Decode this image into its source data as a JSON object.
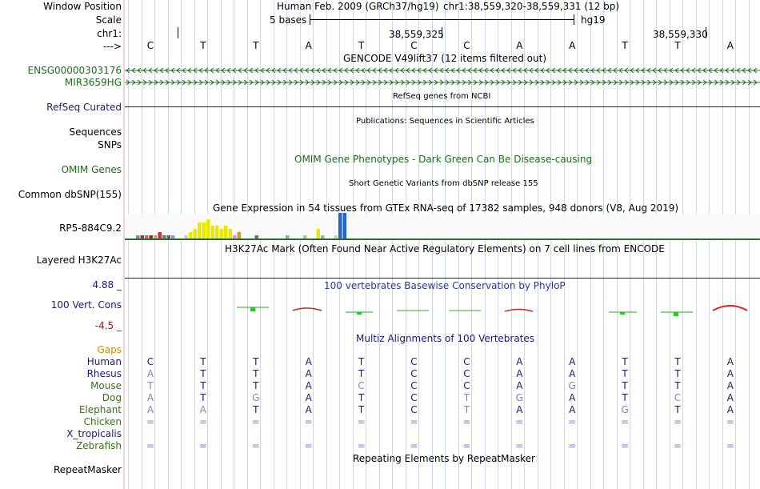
{
  "header": {
    "window_position_label": "Window Position",
    "scale_label": "Scale",
    "chr_label": "chr1:",
    "strand_label": "--->",
    "assembly": "Human Feb. 2009 (GRCh37/hg19)",
    "coords": "chr1:38,559,320-38,559,331 (12 bp)",
    "scale_text": "5 bases",
    "scale_db": "hg19",
    "pos1": "38,559,325",
    "pos2": "38,559,330"
  },
  "bases": [
    "C",
    "T",
    "T",
    "A",
    "T",
    "C",
    "C",
    "A",
    "A",
    "T",
    "T",
    "A"
  ],
  "tracks": {
    "gencode_title": "GENCODE V49lift37 (12 items filtered out)",
    "gene1": "ENSG00000303176",
    "gene2": "MIR3659HG",
    "refseq_title": "RefSeq genes from NCBI",
    "refseq_label": "RefSeq Curated",
    "pubs_title": "Publications: Sequences in Scientific Articles",
    "sequences_label": "Sequences",
    "snps_label": "SNPs",
    "omim_title": "OMIM Gene Phenotypes - Dark Green Can Be Disease-causing",
    "omim_label": "OMIM Genes",
    "dbsnp_title": "Short Genetic Variants from dbSNP release 155",
    "dbsnp_label": "Common dbSNP(155)",
    "gtex_title": "Gene Expression in 54 tissues from GTEx RNA-seq of 17382 samples, 948 donors (V8, Aug 2019)",
    "gtex_label": "RP5-884C9.2",
    "h3k27_title": "H3K27Ac Mark (Often Found Near Active Regulatory Elements) on 7 cell lines from ENCODE",
    "h3k27_label": "Layered H3K27Ac",
    "cons_title": "100 vertebrates Basewise Conservation by PhyloP",
    "cons_max": "4.88 _",
    "cons_label": "100 Vert. Cons",
    "cons_min": "-4.5 _",
    "multiz_title": "Multiz Alignments of 100 Vertebrates",
    "gaps_label": "Gaps",
    "repeat_title": "Repeating Elements by RepeatMasker",
    "repeat_label": "RepeatMasker"
  },
  "alignment": [
    {
      "species": "Human",
      "bases": [
        "C",
        "T",
        "T",
        "A",
        "T",
        "C",
        "C",
        "A",
        "A",
        "T",
        "T",
        "A"
      ],
      "muted": [
        false,
        false,
        false,
        false,
        false,
        false,
        false,
        false,
        false,
        false,
        false,
        false
      ]
    },
    {
      "species": "Rhesus",
      "bases": [
        "A",
        "T",
        "T",
        "A",
        "T",
        "C",
        "C",
        "A",
        "A",
        "T",
        "T",
        "A"
      ],
      "muted": [
        true,
        false,
        false,
        false,
        false,
        false,
        false,
        false,
        false,
        false,
        false,
        false
      ]
    },
    {
      "species": "Mouse",
      "bases": [
        "T",
        "T",
        "T",
        "A",
        "C",
        "C",
        "C",
        "A",
        "G",
        "T",
        "T",
        "A"
      ],
      "muted": [
        true,
        false,
        false,
        false,
        true,
        false,
        false,
        false,
        true,
        false,
        false,
        false
      ]
    },
    {
      "species": "Dog",
      "bases": [
        "A",
        "T",
        "G",
        "A",
        "T",
        "C",
        "T",
        "G",
        "A",
        "T",
        "C",
        "A"
      ],
      "muted": [
        true,
        false,
        true,
        false,
        false,
        false,
        true,
        true,
        false,
        false,
        true,
        false
      ]
    },
    {
      "species": "Elephant",
      "bases": [
        "A",
        "A",
        "T",
        "A",
        "T",
        "C",
        "T",
        "A",
        "A",
        "G",
        "T",
        "A"
      ],
      "muted": [
        true,
        true,
        false,
        false,
        false,
        false,
        true,
        false,
        false,
        true,
        false,
        false
      ]
    },
    {
      "species": "Chicken",
      "bases": [
        "=",
        "=",
        "=",
        "=",
        "=",
        "=",
        "=",
        "=",
        "=",
        "=",
        "=",
        "="
      ],
      "muted": [
        true,
        true,
        true,
        true,
        true,
        true,
        true,
        true,
        true,
        true,
        true,
        true
      ]
    },
    {
      "species": "X_tropicalis",
      "bases": [
        "",
        "",
        "",
        "",
        "",
        "",
        "",
        "",
        "",
        "",
        "",
        ""
      ],
      "muted": [
        true,
        true,
        true,
        true,
        true,
        true,
        true,
        true,
        true,
        true,
        true,
        true
      ]
    },
    {
      "species": "Zebrafish",
      "bases": [
        "=",
        "=",
        "=",
        "=",
        "=",
        "=",
        "=",
        "=",
        "=",
        "=",
        "=",
        "="
      ],
      "muted": [
        true,
        true,
        true,
        true,
        true,
        true,
        true,
        true,
        true,
        true,
        true,
        true
      ]
    }
  ],
  "chart_data": {
    "type": "bar",
    "title": "Gene Expression in 54 tissues from GTEx RNA-seq of 17382 samples, 948 donors (V8, Aug 2019)",
    "xlabel": "",
    "ylabel": "",
    "series": [
      {
        "values": [
          1,
          1,
          1,
          1,
          1,
          2,
          1,
          1,
          1,
          0,
          0,
          1,
          2,
          3,
          5,
          5,
          6,
          4,
          4,
          3,
          4,
          3,
          1,
          2,
          0,
          0,
          0,
          1,
          0,
          0,
          0,
          0,
          0,
          0,
          1,
          0,
          0,
          0,
          1,
          0,
          0,
          3,
          1,
          0,
          0,
          1,
          8,
          8,
          0,
          0,
          0,
          0,
          0,
          0
        ]
      }
    ],
    "colors": [
      "#888888",
      "#993366",
      "#cc6666",
      "#993333",
      "#cc9999",
      "#cc3333",
      "#996666",
      "#666666",
      "#9999cc",
      "#ccccff",
      "#ccccff",
      "#cccccc",
      "#e8e800",
      "#e8e800",
      "#e8e800",
      "#e8e800",
      "#e8e800",
      "#e8e800",
      "#e8e800",
      "#e8e800",
      "#e8e800",
      "#e8e800",
      "#ee88ee",
      "#cc9933",
      "#dddddd",
      "#cccccc",
      "#dddddd",
      "#8b6d4f",
      "#cccccc",
      "#dddddd",
      "#cccccc",
      "#cccccc",
      "#99cc99",
      "#99cc99",
      "#88bb88",
      "#99cc99",
      "#dddddd",
      "#dddddd",
      "#99cc99",
      "#dddddd",
      "#dddddd",
      "#e8e800",
      "#aaaaaa",
      "#dddddd",
      "#dddddd",
      "#cccccc",
      "#2266cc",
      "#2266cc",
      "#dddddd",
      "#999999",
      "#cccccc",
      "#dddddd",
      "#dddddd",
      "#cccccc"
    ]
  }
}
